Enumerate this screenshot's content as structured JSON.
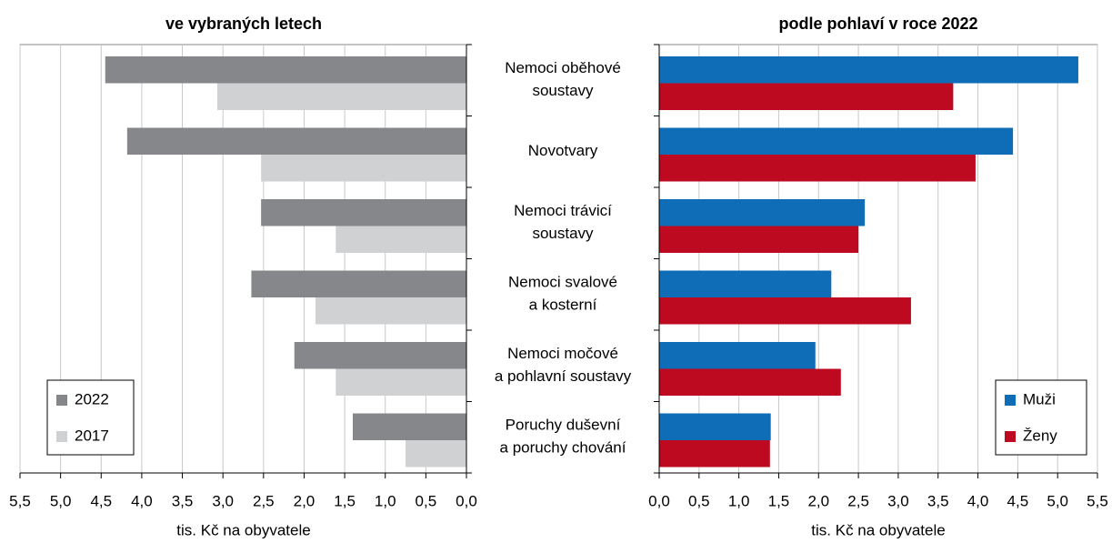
{
  "chart_data": [
    {
      "type": "bar",
      "orientation": "horizontal",
      "reversed": true,
      "title": "ve vybraných letech",
      "categories": [
        "Nemoci oběhové\nsoustavy",
        "Novotvary",
        "Nemoci trávicí\nsoustavy",
        "Nemoci svalové\na kosterní",
        "Nemoci močové\na pohlavní soustavy",
        "Poruchy duševní\na poruchy chování"
      ],
      "series": [
        {
          "name": "2022",
          "color": "#86878b",
          "values": [
            4.45,
            4.18,
            2.53,
            2.65,
            2.12,
            1.4
          ]
        },
        {
          "name": "2017",
          "color": "#d0d1d3",
          "values": [
            3.07,
            2.53,
            1.61,
            1.86,
            1.61,
            0.75
          ]
        }
      ],
      "xlabel": "tis. Kč na obyvatele",
      "xlim": [
        0,
        5.5
      ],
      "xticks": [
        {
          "value": 0,
          "label": "0,0"
        },
        {
          "value": 0.5,
          "label": "0,5"
        },
        {
          "value": 1,
          "label": "1,0"
        },
        {
          "value": 1.5,
          "label": "1,5"
        },
        {
          "value": 2,
          "label": "2,0"
        },
        {
          "value": 2.5,
          "label": "2,5"
        },
        {
          "value": 3,
          "label": "3,0"
        },
        {
          "value": 3.5,
          "label": "3,5"
        },
        {
          "value": 4,
          "label": "4,0"
        },
        {
          "value": 4.5,
          "label": "4,5"
        },
        {
          "value": 5,
          "label": "5,0"
        },
        {
          "value": 5.5,
          "label": "5,5"
        }
      ],
      "grid": true,
      "legend": "lower left"
    },
    {
      "type": "bar",
      "orientation": "horizontal",
      "reversed": false,
      "title": "podle pohlaví v roce 2022",
      "series": [
        {
          "name": "Muži",
          "color": "#0f6db8",
          "values": [
            5.26,
            4.44,
            2.58,
            2.16,
            1.96,
            1.4
          ]
        },
        {
          "name": "Ženy",
          "color": "#be0a21",
          "values": [
            3.69,
            3.97,
            2.5,
            3.16,
            2.28,
            1.39
          ]
        }
      ],
      "xlabel": "tis. Kč na obyvatele",
      "xlim": [
        0,
        5.5
      ],
      "xticks": [
        {
          "value": 0,
          "label": "0,0"
        },
        {
          "value": 0.5,
          "label": "0,5"
        },
        {
          "value": 1,
          "label": "1,0"
        },
        {
          "value": 1.5,
          "label": "1,5"
        },
        {
          "value": 2,
          "label": "2,0"
        },
        {
          "value": 2.5,
          "label": "2,5"
        },
        {
          "value": 3,
          "label": "3,0"
        },
        {
          "value": 3.5,
          "label": "3,5"
        },
        {
          "value": 4,
          "label": "4,0"
        },
        {
          "value": 4.5,
          "label": "4,5"
        },
        {
          "value": 5,
          "label": "5,0"
        },
        {
          "value": 5.5,
          "label": "5,5"
        }
      ],
      "grid": true,
      "legend": "lower right"
    }
  ]
}
